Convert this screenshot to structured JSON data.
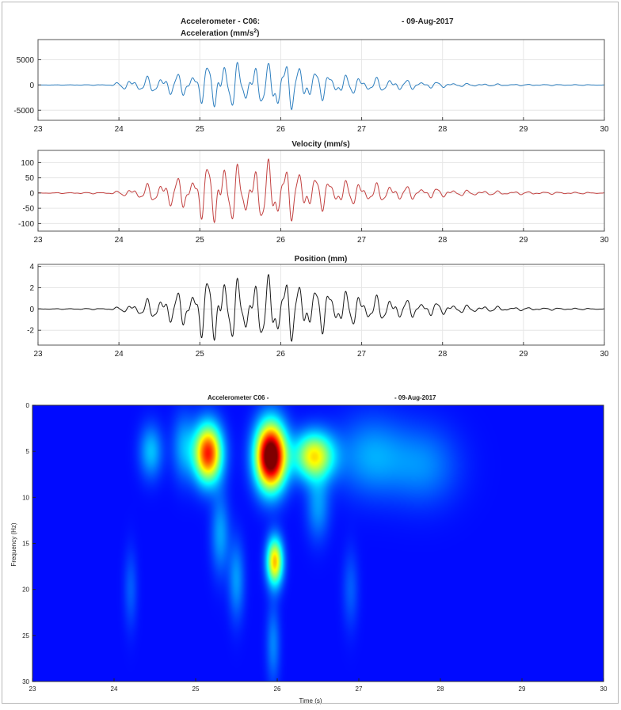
{
  "chart_data": [
    {
      "type": "line",
      "title_line1_left": "Accelerometer - C06:",
      "title_line1_right": "- 09-Aug-2017",
      "title_line2": "Acceleration (mm/s",
      "title_line2_sup": "2",
      "title_line2_end": ")",
      "xlim": [
        23,
        30
      ],
      "ylim": [
        -7000,
        9000
      ],
      "xticks": [
        23,
        24,
        25,
        26,
        27,
        28,
        29,
        30
      ],
      "yticks": [
        -5000,
        0,
        5000
      ],
      "grid": true,
      "series": [
        {
          "color": "#2e7fbf",
          "envelope": [
            [
              23,
              20
            ],
            [
              23.9,
              80
            ],
            [
              24.1,
              1100
            ],
            [
              24.3,
              1500
            ],
            [
              24.6,
              2000
            ],
            [
              24.9,
              2600
            ],
            [
              25.05,
              3800
            ],
            [
              25.2,
              5500
            ],
            [
              25.4,
              4500
            ],
            [
              25.7,
              4000
            ],
            [
              25.85,
              4200
            ],
            [
              25.95,
              7800
            ],
            [
              26.05,
              5000
            ],
            [
              26.3,
              3800
            ],
            [
              26.6,
              2400
            ],
            [
              27.0,
              1600
            ],
            [
              27.4,
              1200
            ],
            [
              27.8,
              700
            ],
            [
              28.3,
              300
            ],
            [
              29.0,
              150
            ],
            [
              30,
              60
            ]
          ]
        }
      ]
    },
    {
      "type": "line",
      "title": "Velocity (mm/s)",
      "xlim": [
        23,
        30
      ],
      "ylim": [
        -125,
        140
      ],
      "xticks": [
        23,
        24,
        25,
        26,
        27,
        28,
        29,
        30
      ],
      "yticks": [
        -100,
        -50,
        0,
        50,
        100
      ],
      "grid": true,
      "series": [
        {
          "color": "#c24140",
          "envelope": [
            [
              23,
              1
            ],
            [
              23.9,
              3
            ],
            [
              24.1,
              12
            ],
            [
              24.3,
              25
            ],
            [
              24.6,
              45
            ],
            [
              24.9,
              60
            ],
            [
              25.05,
              90
            ],
            [
              25.2,
              122
            ],
            [
              25.4,
              95
            ],
            [
              25.7,
              85
            ],
            [
              25.85,
              110
            ],
            [
              25.95,
              125
            ],
            [
              26.05,
              95
            ],
            [
              26.3,
              70
            ],
            [
              26.6,
              48
            ],
            [
              27.0,
              36
            ],
            [
              27.4,
              26
            ],
            [
              27.8,
              18
            ],
            [
              28.3,
              9
            ],
            [
              29.0,
              5
            ],
            [
              30,
              2
            ]
          ]
        }
      ]
    },
    {
      "type": "line",
      "title": "Position (mm)",
      "xlim": [
        23,
        30
      ],
      "ylim": [
        -3.4,
        4.2
      ],
      "xticks": [
        23,
        24,
        25,
        26,
        27,
        28,
        29,
        30
      ],
      "yticks": [
        -2,
        0,
        2,
        4
      ],
      "grid": true,
      "series": [
        {
          "color": "#1a1a1a",
          "envelope": [
            [
              23,
              0.02
            ],
            [
              23.9,
              0.08
            ],
            [
              24.1,
              0.35
            ],
            [
              24.3,
              0.8
            ],
            [
              24.6,
              1.3
            ],
            [
              24.9,
              2.0
            ],
            [
              25.05,
              2.8
            ],
            [
              25.2,
              3.7
            ],
            [
              25.4,
              2.9
            ],
            [
              25.7,
              2.6
            ],
            [
              25.85,
              3.2
            ],
            [
              25.95,
              3.9
            ],
            [
              26.05,
              3.1
            ],
            [
              26.3,
              2.4
            ],
            [
              26.6,
              2.0
            ],
            [
              27.0,
              1.4
            ],
            [
              27.4,
              1.0
            ],
            [
              27.8,
              0.7
            ],
            [
              28.3,
              0.35
            ],
            [
              29.0,
              0.15
            ],
            [
              30,
              0.05
            ]
          ]
        }
      ]
    },
    {
      "type": "heatmap",
      "title_left": "Accelerometer C06 -",
      "title_right": "- 09-Aug-2017",
      "xlabel": "Time (s)",
      "ylabel": "Frequency (Hz)",
      "xlim": [
        23,
        30
      ],
      "ylim": [
        0,
        30
      ],
      "xticks": [
        23,
        24,
        25,
        26,
        27,
        28,
        29,
        30
      ],
      "yticks": [
        0,
        5,
        10,
        15,
        20,
        25,
        30
      ],
      "colormap": "jet",
      "blobs": [
        {
          "t": 25.15,
          "f": 5.2,
          "st": 0.12,
          "sf": 2.2,
          "a": 0.72
        },
        {
          "t": 25.92,
          "f": 5.5,
          "st": 0.13,
          "sf": 2.5,
          "a": 1.0
        },
        {
          "t": 26.45,
          "f": 5.5,
          "st": 0.17,
          "sf": 1.8,
          "a": 0.5
        },
        {
          "t": 25.97,
          "f": 17.0,
          "st": 0.07,
          "sf": 1.8,
          "a": 0.55
        },
        {
          "t": 24.45,
          "f": 5.0,
          "st": 0.1,
          "sf": 2.0,
          "a": 0.18
        },
        {
          "t": 24.85,
          "f": 4.5,
          "st": 0.1,
          "sf": 2.5,
          "a": 0.15
        },
        {
          "t": 27.15,
          "f": 5.5,
          "st": 0.3,
          "sf": 3.0,
          "a": 0.15
        },
        {
          "t": 27.8,
          "f": 6.5,
          "st": 0.3,
          "sf": 3.0,
          "a": 0.12
        },
        {
          "t": 25.3,
          "f": 14.0,
          "st": 0.08,
          "sf": 3.0,
          "a": 0.15
        },
        {
          "t": 25.5,
          "f": 19.0,
          "st": 0.07,
          "sf": 3.0,
          "a": 0.14
        },
        {
          "t": 26.5,
          "f": 11.0,
          "st": 0.1,
          "sf": 2.5,
          "a": 0.14
        },
        {
          "t": 25.95,
          "f": 26.0,
          "st": 0.06,
          "sf": 3.0,
          "a": 0.12
        },
        {
          "t": 24.2,
          "f": 20.0,
          "st": 0.06,
          "sf": 3.0,
          "a": 0.08
        },
        {
          "t": 26.9,
          "f": 20.0,
          "st": 0.07,
          "sf": 3.0,
          "a": 0.08
        }
      ]
    }
  ]
}
